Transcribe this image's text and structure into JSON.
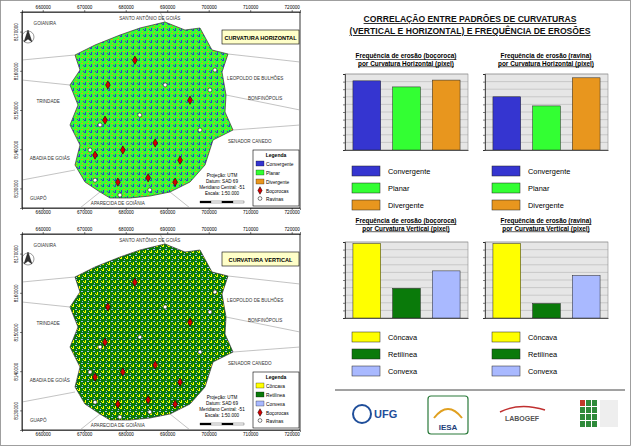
{
  "title": [
    "CORRELAÇÃO ENTRE PADRÕES DE CURVATURAS",
    "(VERTICAL E HORIZONTAL) E FREQUÊNCIA DE EROSÕES"
  ],
  "chart_data": [
    {
      "type": "bar",
      "title": [
        "Frequência de erosão (boçoroca)",
        "por Curvatura Horizontal (pixel)"
      ],
      "categories": [
        "Convergente",
        "Planar",
        "Divergente"
      ],
      "values": [
        91,
        83,
        92
      ],
      "colors": [
        "#3535d0",
        "#33ff33",
        "#e8961e"
      ],
      "ylim": [
        0,
        100
      ],
      "yticks": [
        0,
        10,
        20,
        30,
        40,
        50,
        60,
        70,
        80,
        90,
        100
      ],
      "grid": true,
      "tick_labels": false,
      "legend": "bottom"
    },
    {
      "type": "bar",
      "title": [
        "Frequência de erosão (ravina)",
        "por Curvatura Horizontal (pixel)"
      ],
      "categories": [
        "Convergente",
        "Planar",
        "Divergente"
      ],
      "values": [
        70,
        58,
        95
      ],
      "colors": [
        "#3535d0",
        "#33ff33",
        "#e8961e"
      ],
      "ylim": [
        0,
        100
      ],
      "yticks": [
        0,
        10,
        20,
        30,
        40,
        50,
        60,
        70,
        80,
        90,
        100
      ],
      "grid": true,
      "tick_labels": false,
      "legend": "bottom"
    },
    {
      "type": "bar",
      "title": [
        "Frequência de erosão (boçoroca)",
        "por Curvatura Vertical (pixel)"
      ],
      "categories": [
        "Côncava",
        "Retilínea",
        "Convexa"
      ],
      "values": [
        98,
        39,
        62
      ],
      "colors": [
        "#ffff00",
        "#0a7a0a",
        "#a9b9ff"
      ],
      "ylim": [
        0,
        100
      ],
      "yticks": [
        0,
        10,
        20,
        30,
        40,
        50,
        60,
        70,
        80,
        90,
        100
      ],
      "grid": true,
      "tick_labels": false,
      "legend": "bottom"
    },
    {
      "type": "bar",
      "title": [
        "Frequência de erosão (ravina)",
        "por Curvatura Vertical (pixel)"
      ],
      "categories": [
        "Côncava",
        "Retilínea",
        "Convexa"
      ],
      "values": [
        98,
        19,
        56
      ],
      "colors": [
        "#ffff00",
        "#0a7a0a",
        "#a9b9ff"
      ],
      "ylim": [
        0,
        100
      ],
      "yticks": [
        0,
        10,
        20,
        30,
        40,
        50,
        60,
        70,
        80,
        90,
        100
      ],
      "grid": true,
      "tick_labels": false,
      "legend": "bottom"
    }
  ],
  "map_common": {
    "xlim": [
      655000,
      722000
    ],
    "ylim": [
      8125000,
      8175000
    ],
    "xticks": [
      660000,
      670000,
      680000,
      690000,
      700000,
      710000,
      720000
    ],
    "yticks": [
      8130000,
      8140000,
      8150000,
      8160000,
      8170000
    ],
    "legend_title": "Legenda",
    "notes": [
      "Projeção: UTM",
      "Datum: SAD 69",
      "Meridiano Central: -51",
      "Escala: 1:50.000"
    ],
    "places": [
      {
        "name": "GOIANIRA",
        "x": 660500,
        "y": 8171700
      },
      {
        "name": "SANTO ANTÔNIO DE GOIÁS",
        "x": 685800,
        "y": 8172900
      },
      {
        "name": "LEOPOLDO DE BULHÕES",
        "x": 711200,
        "y": 8157600
      },
      {
        "name": "BONFINÓPOLIS",
        "x": 713600,
        "y": 8152500
      },
      {
        "name": "SENADOR CANEDO",
        "x": 709900,
        "y": 8141600
      },
      {
        "name": "TRINDADE",
        "x": 661300,
        "y": 8151800
      },
      {
        "name": "ABADIA DE GOIÁS",
        "x": 661700,
        "y": 8137200
      },
      {
        "name": "GUAPÓ",
        "x": 658900,
        "y": 8127000
      },
      {
        "name": "APARECIDA DE GOIÂNIA",
        "x": 678100,
        "y": 8125800
      }
    ],
    "point_types": [
      {
        "name": "Boçorocas",
        "color": "#d40000",
        "marker": "diamond",
        "points": [
          [
            672600,
            8138500
          ],
          [
            675000,
            8147400
          ],
          [
            678100,
            8131600
          ],
          [
            685400,
            8132700
          ],
          [
            687100,
            8141600
          ],
          [
            693100,
            8137200
          ],
          [
            691900,
            8131600
          ],
          [
            679300,
            8139800
          ],
          [
            695500,
            8152500
          ],
          [
            682200,
            8162700
          ],
          [
            675700,
            8156400
          ]
        ]
      },
      {
        "name": "Ravinas",
        "color": "#ffffff",
        "marker": "circle",
        "points": [
          [
            671400,
            8139800
          ],
          [
            673800,
            8146200
          ],
          [
            678600,
            8128300
          ],
          [
            683400,
            8148700
          ],
          [
            689500,
            8156400
          ],
          [
            700300,
            8155100
          ],
          [
            697900,
            8144900
          ],
          [
            685800,
            8129600
          ],
          [
            672600,
            8132100
          ],
          [
            701500,
            8160200
          ]
        ]
      }
    ]
  },
  "maps": [
    {
      "title": "CURVATURA HORIZONTAL",
      "classes": [
        {
          "name": "Convergente",
          "color": "#3535d0"
        },
        {
          "name": "Planar",
          "color": "#33ff33"
        },
        {
          "name": "Divergente",
          "color": "#e8961e"
        }
      ]
    },
    {
      "title": "CURVATURA VERTICAL",
      "classes": [
        {
          "name": "Côncava",
          "color": "#ffff00"
        },
        {
          "name": "Retilínea",
          "color": "#0a7a0a"
        },
        {
          "name": "Convexa",
          "color": "#a9b9ff"
        }
      ]
    }
  ],
  "logos": [
    "UFG",
    "IESA",
    "LABOGEF"
  ]
}
